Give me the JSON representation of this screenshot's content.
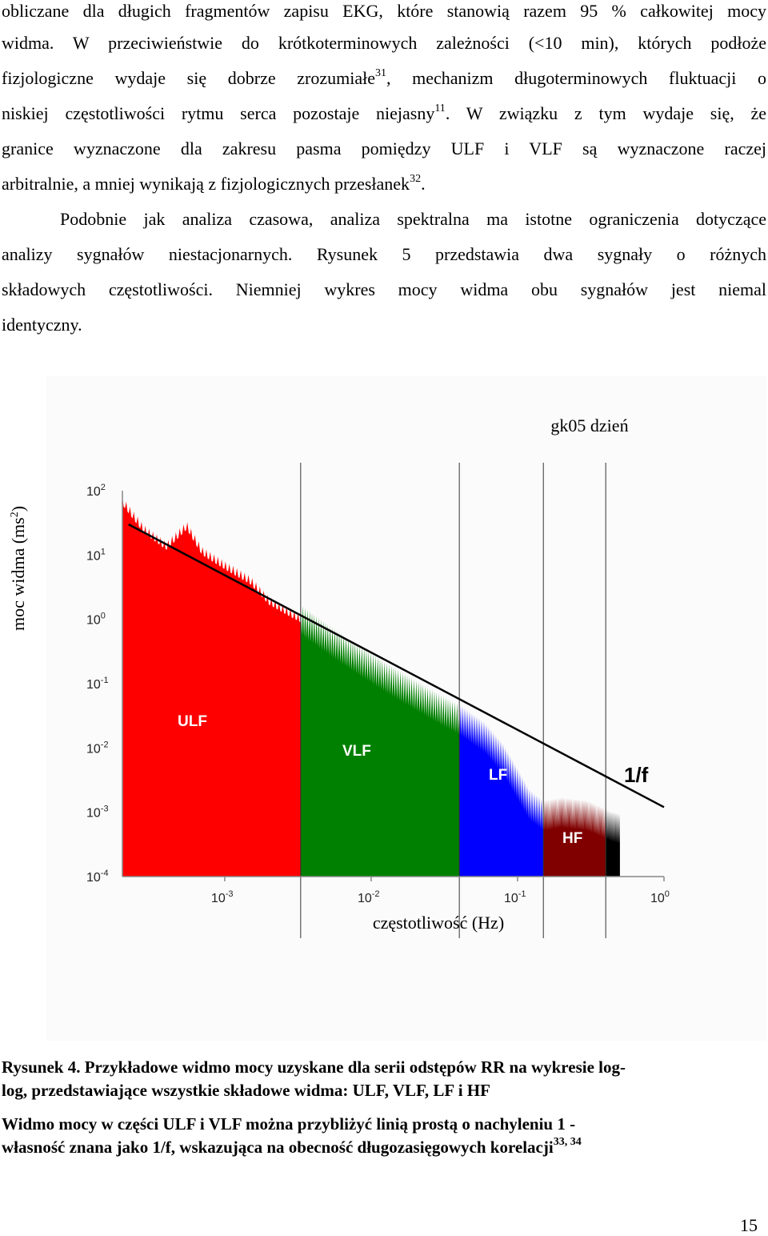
{
  "body_lines": [
    {
      "text": "obliczane dla długich fragmentów zapisu EKG, które stanowią razem 95 % całkowitej mocy",
      "sup": "",
      "tail": ""
    },
    {
      "text": "widma. W przeciwieństwie do krótkoterminowych zależności (<10 min), których podłoże",
      "sup": "",
      "tail": ""
    },
    {
      "text": "fizjologiczne wydaje się dobrze zrozumiałe",
      "sup": "31",
      "tail": ", mechanizm długoterminowych fluktuacji o"
    },
    {
      "text": "niskiej częstotliwości rytmu serca  pozostaje niejasny",
      "sup": "11",
      "tail": ". W związku z tym wydaje się, że"
    },
    {
      "text": "granice wyznaczone dla zakresu pasma pomiędzy ULF i VLF są wyznaczone raczej",
      "sup": "",
      "tail": ""
    },
    {
      "text": "arbitralnie, a mniej wynikają z fizjologicznych przesłanek",
      "sup": "32",
      "tail": "."
    },
    {
      "text": "Podobnie jak analiza czasowa, analiza spektralna ma istotne ograniczenia dotyczące",
      "sup": "",
      "tail": ""
    },
    {
      "text": "analizy sygnałów niestacjonarnych. Rysunek 5 przedstawia dwa sygnały o różnych",
      "sup": "",
      "tail": ""
    },
    {
      "text": "składowych częstotliwości. Niemniej wykres mocy widma obu sygnałów jest niemal",
      "sup": "",
      "tail": ""
    },
    {
      "text": "identyczny.",
      "sup": "",
      "tail": ""
    }
  ],
  "figure": {
    "annotation": "1/f",
    "band_labels": [
      "ULF",
      "VLF",
      "LF",
      "HF"
    ],
    "band_colors": {
      "ULF": "#ff0000",
      "VLF": "#008000",
      "LF": "#0000ff",
      "HF": "#800000",
      "rest": "#000000"
    }
  },
  "chart_data": {
    "type": "area",
    "title": "gk05 dzień",
    "xlabel": "częstotliwość (Hz)",
    "ylabel_base": "moc widma (ms",
    "ylabel_sup": "2",
    "ylabel_close": ")",
    "x_scale": "log",
    "y_scale": "log",
    "xlim": [
      0.0002,
      1
    ],
    "ylim": [
      0.0001,
      100
    ],
    "x_ticks": [
      {
        "base": "10",
        "exp": "-3"
      },
      {
        "base": "10",
        "exp": "-2"
      },
      {
        "base": "10",
        "exp": "-1"
      },
      {
        "base": "10",
        "exp": "0"
      }
    ],
    "y_ticks": [
      {
        "base": "10",
        "exp": "2"
      },
      {
        "base": "10",
        "exp": "1"
      },
      {
        "base": "10",
        "exp": "0"
      },
      {
        "base": "10",
        "exp": "-1"
      },
      {
        "base": "10",
        "exp": "-2"
      },
      {
        "base": "10",
        "exp": "-3"
      },
      {
        "base": "10",
        "exp": "-4"
      }
    ],
    "band_boundaries_hz": [
      0.0033,
      0.04,
      0.15,
      0.4
    ],
    "reference_line": {
      "label": "1/f",
      "points": [
        [
          0.00022,
          30
        ],
        [
          1,
          0.0012
        ]
      ]
    },
    "spectrum_envelope": [
      [
        0.0002,
        60
      ],
      [
        0.00028,
        22
      ],
      [
        0.0004,
        12
      ],
      [
        0.00055,
        25
      ],
      [
        0.0007,
        10
      ],
      [
        0.001,
        6
      ],
      [
        0.0015,
        3.5
      ],
      [
        0.002,
        1.7
      ],
      [
        0.0028,
        1.1
      ],
      [
        0.0033,
        0.9
      ],
      [
        0.005,
        0.45
      ],
      [
        0.008,
        0.22
      ],
      [
        0.012,
        0.12
      ],
      [
        0.02,
        0.06
      ],
      [
        0.03,
        0.035
      ],
      [
        0.04,
        0.025
      ],
      [
        0.06,
        0.013
      ],
      [
        0.08,
        0.006
      ],
      [
        0.1,
        0.0025
      ],
      [
        0.12,
        0.0012
      ],
      [
        0.15,
        0.0008
      ],
      [
        0.2,
        0.0009
      ],
      [
        0.3,
        0.0008
      ],
      [
        0.4,
        0.0006
      ],
      [
        0.5,
        0.0005
      ]
    ]
  },
  "captions": [
    {
      "text": "Rysunek 4. Przykładowe widmo mocy uzyskane dla serii odstępów RR na wykresie log-",
      "sup": ""
    },
    {
      "text": "log, przedstawiające wszystkie składowe widma: ULF, VLF, LF i HF",
      "sup": ""
    },
    {
      "text": "Widmo mocy w części ULF i VLF można przybliżyć linią prostą o nachyleniu 1 -",
      "sup": ""
    },
    {
      "text": "własność znana jako 1/f, wskazująca na obecność długozasięgowych korelacji",
      "sup": "33, 34"
    }
  ],
  "page_number": "15"
}
